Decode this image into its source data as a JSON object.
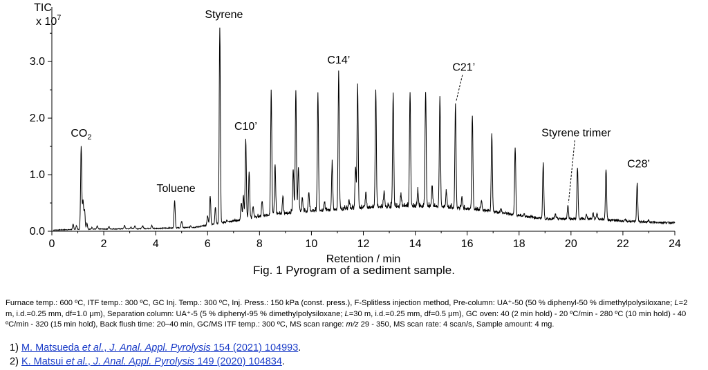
{
  "chart_data": {
    "type": "line",
    "ylabel_line1": "TIC",
    "ylabel_line2_base": "x 10",
    "ylabel_line2_exp": "7",
    "xlabel": "Retention / min",
    "xlim": [
      0,
      24
    ],
    "ylim": [
      0,
      3.6
    ],
    "x_ticks": [
      0,
      2,
      4,
      6,
      8,
      10,
      12,
      14,
      16,
      18,
      20,
      22,
      24
    ],
    "y_ticks": [
      {
        "value": 0.0,
        "label": "0.0"
      },
      {
        "value": 1.0,
        "label": "1.0"
      },
      {
        "value": 2.0,
        "label": "2.0"
      },
      {
        "value": 3.0,
        "label": "3.0"
      }
    ],
    "baseline": [
      [
        0.0,
        0.02
      ],
      [
        0.8,
        0.03
      ],
      [
        2,
        0.04
      ],
      [
        4,
        0.05
      ],
      [
        5.5,
        0.07
      ],
      [
        6.2,
        0.12
      ],
      [
        7,
        0.18
      ],
      [
        8,
        0.26
      ],
      [
        9,
        0.32
      ],
      [
        10,
        0.36
      ],
      [
        11,
        0.38
      ],
      [
        12,
        0.42
      ],
      [
        13,
        0.43
      ],
      [
        14,
        0.44
      ],
      [
        15,
        0.43
      ],
      [
        16,
        0.4
      ],
      [
        17,
        0.35
      ],
      [
        18,
        0.28
      ],
      [
        19,
        0.22
      ],
      [
        20,
        0.22
      ],
      [
        21,
        0.22
      ],
      [
        22,
        0.18
      ],
      [
        23,
        0.16
      ],
      [
        24,
        0.15
      ]
    ],
    "peaks": [
      [
        0.82,
        0.12
      ],
      [
        0.95,
        0.1
      ],
      [
        1.13,
        1.5
      ],
      [
        1.2,
        0.55
      ],
      [
        1.26,
        0.38
      ],
      [
        1.35,
        0.15
      ],
      [
        1.55,
        0.07
      ],
      [
        1.75,
        0.09
      ],
      [
        2.2,
        0.08
      ],
      [
        2.8,
        0.1
      ],
      [
        3.05,
        0.07
      ],
      [
        3.2,
        0.1
      ],
      [
        3.5,
        0.1
      ],
      [
        3.85,
        0.1
      ],
      [
        4.73,
        0.55
      ],
      [
        5.0,
        0.18
      ],
      [
        5.35,
        0.1
      ],
      [
        6.0,
        0.28
      ],
      [
        6.1,
        0.63
      ],
      [
        6.3,
        0.43
      ],
      [
        6.47,
        3.6
      ],
      [
        6.75,
        0.2
      ],
      [
        7.3,
        0.5
      ],
      [
        7.38,
        0.62
      ],
      [
        7.47,
        1.65
      ],
      [
        7.6,
        1.05
      ],
      [
        7.75,
        0.45
      ],
      [
        8.1,
        0.55
      ],
      [
        8.45,
        2.5
      ],
      [
        8.6,
        1.2
      ],
      [
        8.9,
        0.6
      ],
      [
        9.3,
        1.1
      ],
      [
        9.4,
        2.5
      ],
      [
        9.5,
        1.15
      ],
      [
        9.65,
        0.6
      ],
      [
        9.9,
        0.7
      ],
      [
        10.25,
        2.45
      ],
      [
        10.5,
        0.5
      ],
      [
        10.8,
        1.2
      ],
      [
        11.05,
        2.82
      ],
      [
        11.45,
        0.55
      ],
      [
        11.7,
        1.15
      ],
      [
        11.78,
        2.6
      ],
      [
        12.1,
        0.7
      ],
      [
        12.48,
        2.5
      ],
      [
        12.8,
        0.7
      ],
      [
        13.15,
        2.43
      ],
      [
        13.45,
        0.65
      ],
      [
        13.8,
        2.47
      ],
      [
        14.1,
        0.7
      ],
      [
        14.4,
        2.48
      ],
      [
        14.65,
        0.8
      ],
      [
        14.95,
        2.37
      ],
      [
        15.2,
        0.7
      ],
      [
        15.55,
        2.25
      ],
      [
        15.8,
        0.6
      ],
      [
        16.2,
        2.03
      ],
      [
        16.55,
        0.55
      ],
      [
        16.95,
        1.72
      ],
      [
        17.3,
        0.4
      ],
      [
        17.85,
        1.5
      ],
      [
        18.2,
        0.3
      ],
      [
        18.93,
        1.22
      ],
      [
        19.4,
        0.3
      ],
      [
        19.88,
        0.46
      ],
      [
        20.25,
        1.12
      ],
      [
        20.6,
        0.3
      ],
      [
        20.85,
        0.33
      ],
      [
        21.0,
        0.32
      ],
      [
        21.35,
        1.1
      ],
      [
        22.1,
        0.2
      ],
      [
        22.55,
        0.86
      ],
      [
        23.0,
        0.2
      ]
    ],
    "annotations": [
      {
        "text": "CO2",
        "x": 1.13,
        "y": 1.5,
        "subscript": "2"
      },
      {
        "text": "Toluene",
        "x": 4.73,
        "y": 0.55
      },
      {
        "text": "Styrene",
        "x": 6.47,
        "y": 3.6
      },
      {
        "text": "C10’",
        "x": 7.47,
        "y": 1.65
      },
      {
        "text": "C14’",
        "x": 11.05,
        "y": 2.82
      },
      {
        "text": "C21’",
        "x": 15.55,
        "y": 2.25,
        "dashed_leader": true
      },
      {
        "text": "Styrene trimer",
        "x": 19.88,
        "y": 0.46,
        "dashed_leader": true
      },
      {
        "text": "C28’",
        "x": 22.55,
        "y": 0.86
      }
    ]
  },
  "caption": "Fig. 1 Pyrogram of a sediment sample.",
  "conditions": {
    "p1": "Furnace temp.: 600 ºC, ITF temp.: 300 ºC, GC Inj. Temp.: 300 ºC, Inj. Press.: 150 kPa (const. press.), F-Splitless injection method, Pre-column: UA⁺-50 (50 % diphenyl-50 % dimethylpolysiloxane; ",
    "p1_L": "L",
    "p2": "=2 m, i.d.=0.25 mm, df=1.0 μm), Separation column: UA⁺-5 (5 % diphenyl-95 % dimethylpolysiloxane; ",
    "p2_L": "L",
    "p3": "=30 m, i.d.=0.25 mm, df=0.5 μm), GC oven: 40 (2 min hold) - 20 ºC/min - 280 ºC (10 min hold) - 40 ºC/min - 320 (15 min hold), Back flush time: 20–40 min, GC/MS ITF temp.: 300 ºC, MS scan range: ",
    "p3_mz": "m/z",
    "p4": " 29 - 350, MS scan rate: 4 scan/s, Sample amount: 4 mg."
  },
  "references": [
    {
      "num": "1)",
      "authors": "M. Matsueda ",
      "etal": "et al.",
      "journal": "J. Anal. Appl. Pyrolysis",
      "sep1": ", ",
      "tail": " 154 (2021) 104993",
      "end": "."
    },
    {
      "num": "2)",
      "authors": "K. Matsui ",
      "etal": "et al.",
      "journal": "J. Anal. Appl. Pyrolysis",
      "sep1": ", ",
      "tail": " 149 (2020) 104834",
      "end": "."
    }
  ]
}
